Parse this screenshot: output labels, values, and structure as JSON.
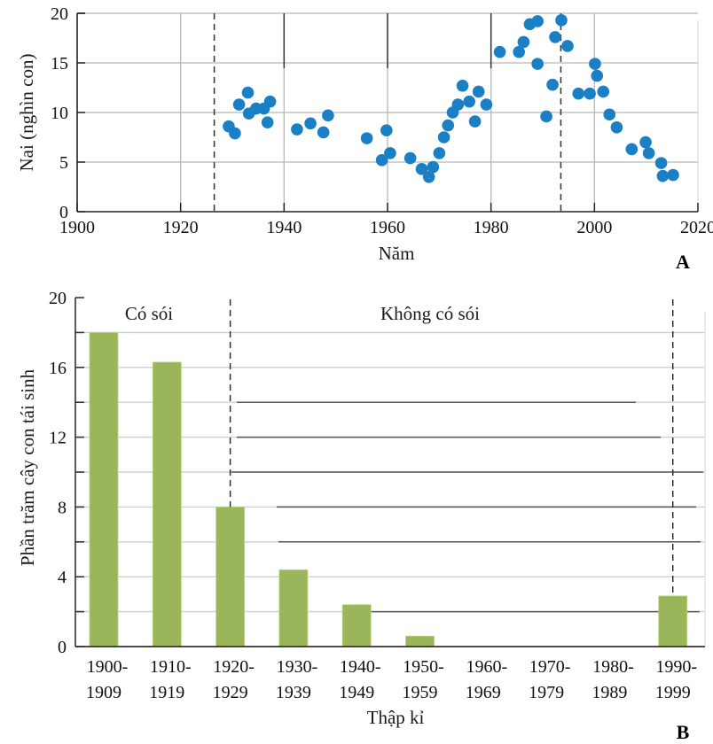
{
  "chart_data": [
    {
      "panel": "A",
      "type": "scatter",
      "title": "",
      "xlabel": "Năm",
      "ylabel": "Nai (nghìn con)",
      "xlim": [
        1900,
        2020
      ],
      "ylim": [
        0,
        20
      ],
      "xticks": [
        1900,
        1920,
        1940,
        1960,
        1980,
        2000,
        2020
      ],
      "yticks": [
        0,
        5,
        10,
        15,
        20
      ],
      "xtick_labels": [
        "1900",
        "1920",
        "1940",
        "1960",
        "1980",
        "2000",
        "2020"
      ],
      "ytick_labels": [
        "0",
        "5",
        "10",
        "15",
        "20"
      ],
      "grid": true,
      "vertical_reference_lines": [
        1926.5,
        1993.5
      ],
      "point_color": "#1a7fc4",
      "points": [
        {
          "x": 1929.3,
          "y": 8.6
        },
        {
          "x": 1930.5,
          "y": 7.9
        },
        {
          "x": 1931.3,
          "y": 10.8
        },
        {
          "x": 1933.0,
          "y": 12.0
        },
        {
          "x": 1933.2,
          "y": 9.9
        },
        {
          "x": 1934.6,
          "y": 10.4
        },
        {
          "x": 1936.1,
          "y": 10.4
        },
        {
          "x": 1937.3,
          "y": 11.1
        },
        {
          "x": 1936.8,
          "y": 9.0
        },
        {
          "x": 1942.5,
          "y": 8.3
        },
        {
          "x": 1945.1,
          "y": 8.9
        },
        {
          "x": 1947.6,
          "y": 8.0
        },
        {
          "x": 1948.5,
          "y": 9.7
        },
        {
          "x": 1956.0,
          "y": 7.4
        },
        {
          "x": 1958.9,
          "y": 5.2
        },
        {
          "x": 1959.8,
          "y": 8.2
        },
        {
          "x": 1960.5,
          "y": 5.9
        },
        {
          "x": 1964.4,
          "y": 5.4
        },
        {
          "x": 1966.6,
          "y": 4.3
        },
        {
          "x": 1968.0,
          "y": 3.5
        },
        {
          "x": 1968.8,
          "y": 4.5
        },
        {
          "x": 1970.0,
          "y": 5.9
        },
        {
          "x": 1970.9,
          "y": 7.5
        },
        {
          "x": 1971.7,
          "y": 8.7
        },
        {
          "x": 1972.6,
          "y": 10.0
        },
        {
          "x": 1973.6,
          "y": 10.8
        },
        {
          "x": 1974.5,
          "y": 12.7
        },
        {
          "x": 1975.8,
          "y": 11.1
        },
        {
          "x": 1976.9,
          "y": 9.1
        },
        {
          "x": 1977.6,
          "y": 12.1
        },
        {
          "x": 1979.1,
          "y": 10.8
        },
        {
          "x": 1981.7,
          "y": 16.1
        },
        {
          "x": 1985.4,
          "y": 16.1
        },
        {
          "x": 1986.3,
          "y": 17.1
        },
        {
          "x": 1987.5,
          "y": 18.9
        },
        {
          "x": 1989.0,
          "y": 19.2
        },
        {
          "x": 1989.0,
          "y": 14.9
        },
        {
          "x": 1990.7,
          "y": 9.6
        },
        {
          "x": 1991.9,
          "y": 12.8
        },
        {
          "x": 1992.4,
          "y": 17.6
        },
        {
          "x": 1993.6,
          "y": 19.3
        },
        {
          "x": 1994.8,
          "y": 16.7
        },
        {
          "x": 1996.9,
          "y": 11.9
        },
        {
          "x": 1999.1,
          "y": 11.9
        },
        {
          "x": 2000.1,
          "y": 14.9
        },
        {
          "x": 2000.5,
          "y": 13.7
        },
        {
          "x": 2001.7,
          "y": 12.1
        },
        {
          "x": 2002.9,
          "y": 9.8
        },
        {
          "x": 2004.3,
          "y": 8.5
        },
        {
          "x": 2007.2,
          "y": 6.3
        },
        {
          "x": 2009.9,
          "y": 7.0
        },
        {
          "x": 2010.5,
          "y": 5.9
        },
        {
          "x": 2012.9,
          "y": 4.9
        },
        {
          "x": 2013.2,
          "y": 3.6
        },
        {
          "x": 2015.2,
          "y": 3.7
        }
      ]
    },
    {
      "panel": "B",
      "type": "bar",
      "title": "",
      "xlabel": "Thập kỉ",
      "ylabel": "Phần trăm cây con tái sinh",
      "ylim": [
        0,
        20
      ],
      "yticks": [
        0,
        4,
        8,
        12,
        16,
        20
      ],
      "ytick_labels": [
        "0",
        "4",
        "8",
        "12",
        "16",
        "20"
      ],
      "grid": true,
      "bar_color": "#9bb55a",
      "categories": [
        {
          "line1": "1900-",
          "line2": "1909"
        },
        {
          "line1": "1910-",
          "line2": "1919"
        },
        {
          "line1": "1920-",
          "line2": "1929"
        },
        {
          "line1": "1930-",
          "line2": "1939"
        },
        {
          "line1": "1940-",
          "line2": "1949"
        },
        {
          "line1": "1950-",
          "line2": "1959"
        },
        {
          "line1": "1960-",
          "line2": "1969"
        },
        {
          "line1": "1970-",
          "line2": "1979"
        },
        {
          "line1": "1980-",
          "line2": "1989"
        },
        {
          "line1": "1990-",
          "line2": "1999"
        }
      ],
      "values": [
        18.0,
        16.3,
        8.0,
        4.4,
        2.4,
        0.6,
        0,
        0,
        0,
        2.9
      ],
      "region_labels": [
        "Có sói",
        "Không có sói"
      ],
      "divider_category_indices": [
        2,
        9
      ]
    }
  ],
  "panel_labels": {
    "a": "A",
    "b": "B"
  }
}
